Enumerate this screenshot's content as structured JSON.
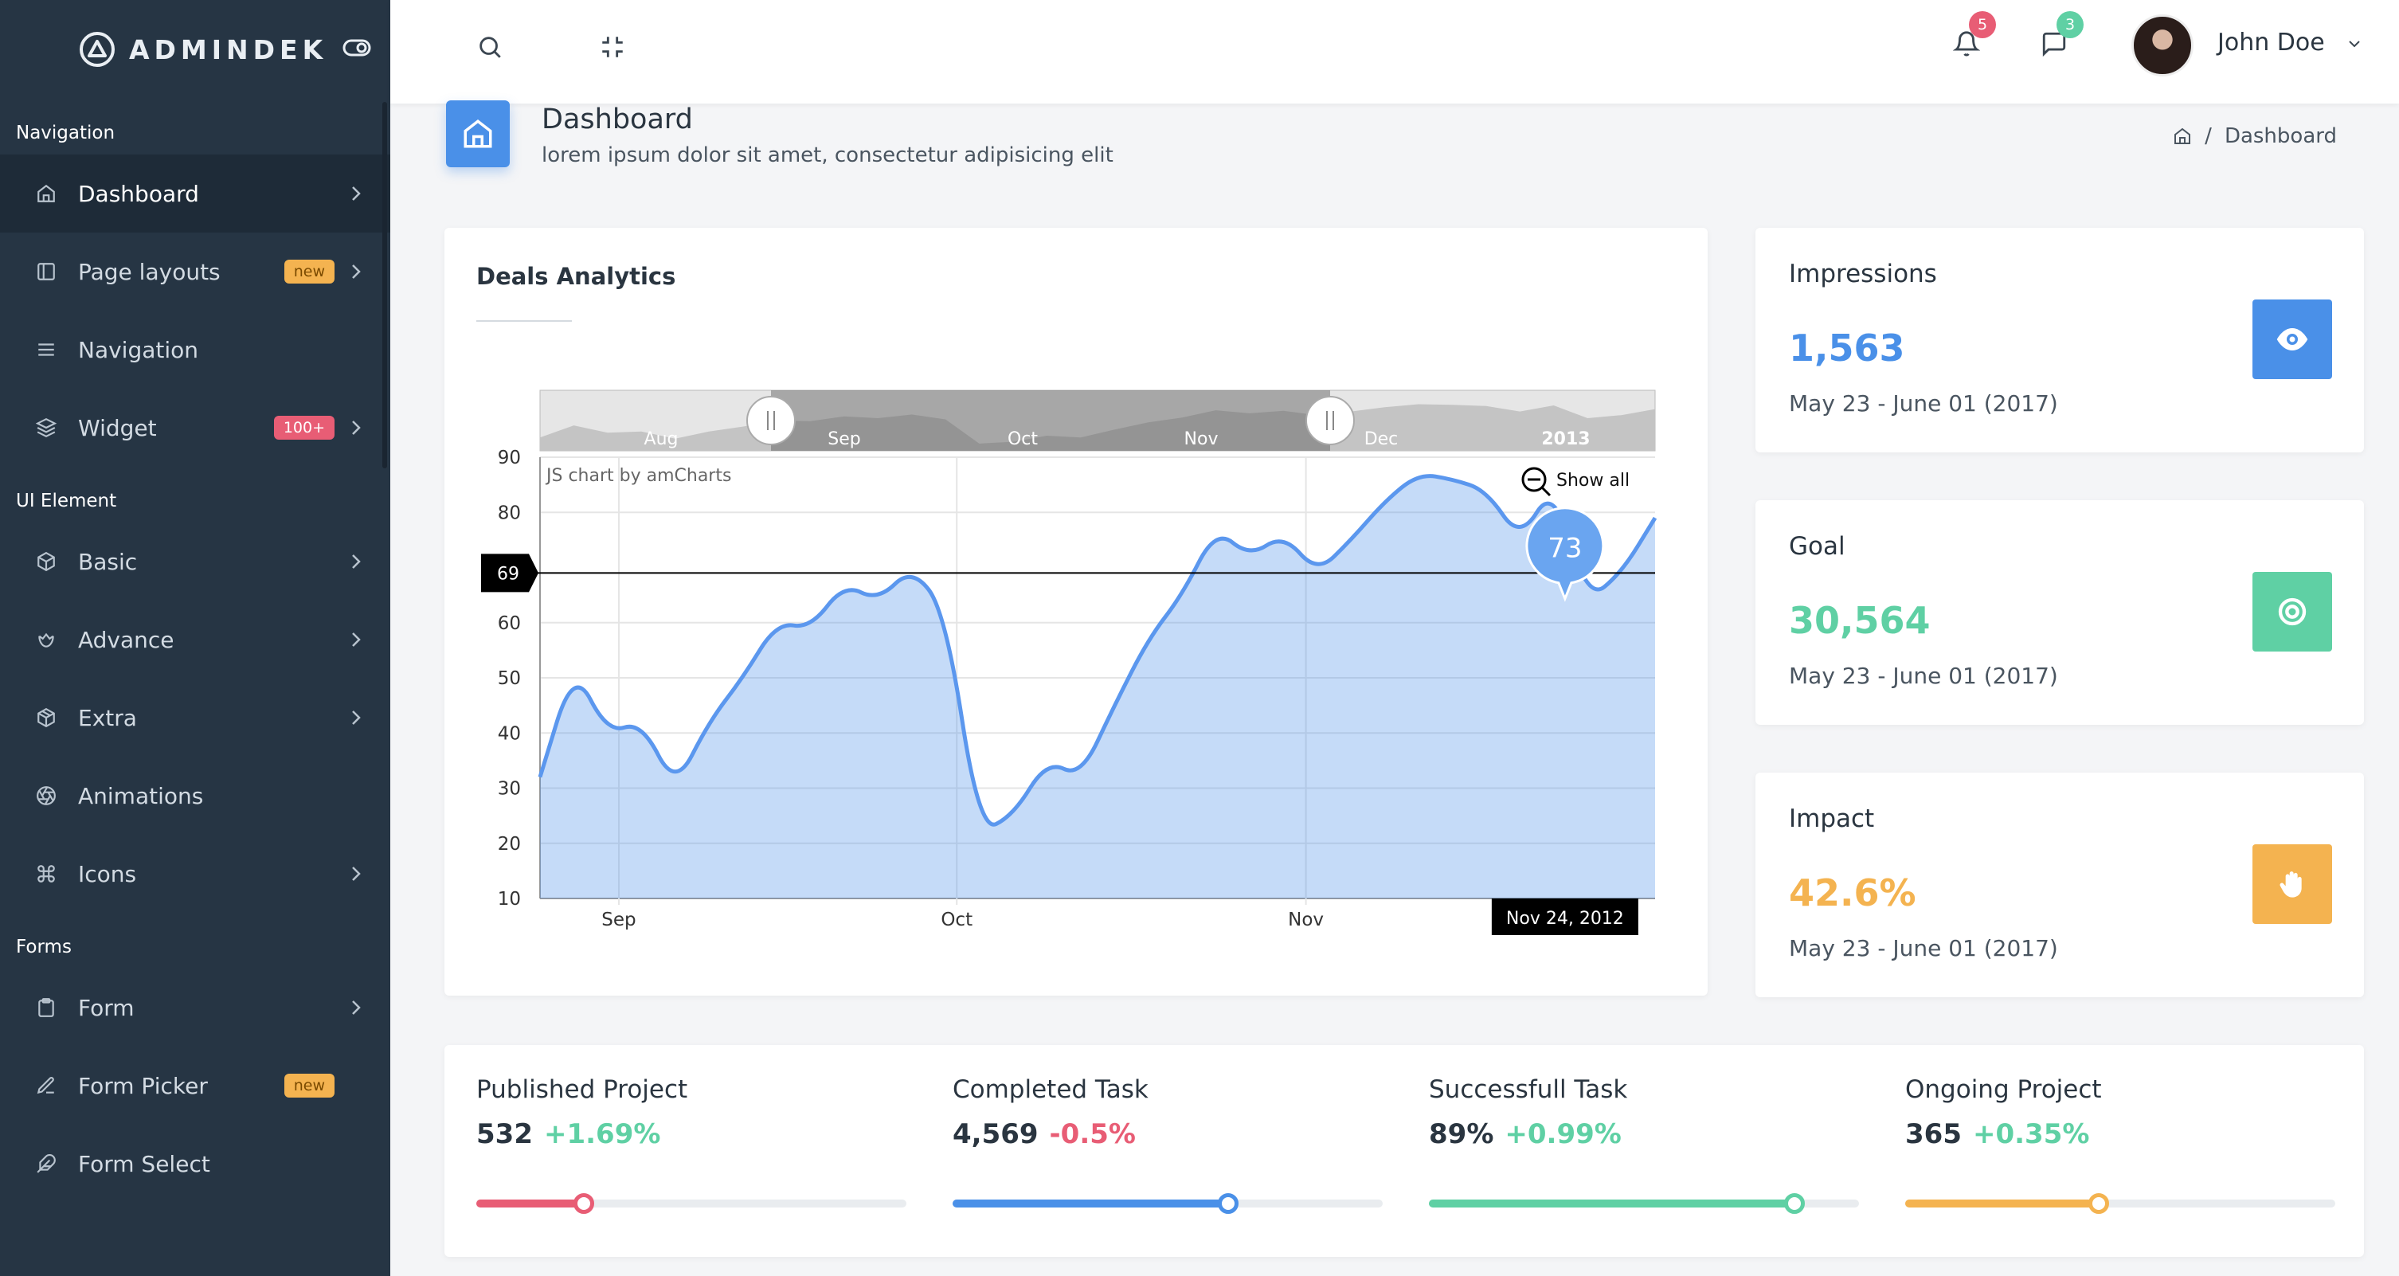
{
  "brand": {
    "name": "ADMINDEK"
  },
  "sidebar": {
    "sections": [
      {
        "heading": "Navigation",
        "items": [
          {
            "label": "Dashboard",
            "icon": "home-icon",
            "active": true,
            "chevron": true
          },
          {
            "label": "Page layouts",
            "icon": "layout-icon",
            "badge": "new",
            "chevron": true
          },
          {
            "label": "Navigation",
            "icon": "menu-icon"
          },
          {
            "label": "Widget",
            "icon": "layers-icon",
            "badge": "100+",
            "chevron": true
          }
        ]
      },
      {
        "heading": "UI Element",
        "items": [
          {
            "label": "Basic",
            "icon": "box-icon",
            "chevron": true
          },
          {
            "label": "Advance",
            "icon": "gift-icon",
            "chevron": true
          },
          {
            "label": "Extra",
            "icon": "package-icon",
            "chevron": true
          },
          {
            "label": "Animations",
            "icon": "aperture-icon"
          },
          {
            "label": "Icons",
            "icon": "command-icon",
            "chevron": true
          }
        ]
      },
      {
        "heading": "Forms",
        "items": [
          {
            "label": "Form",
            "icon": "clipboard-icon",
            "chevron": true
          },
          {
            "label": "Form Picker",
            "icon": "edit-icon",
            "badge": "new"
          },
          {
            "label": "Form Select",
            "icon": "feather-icon"
          }
        ]
      }
    ]
  },
  "topbar": {
    "notifications_count": "5",
    "messages_count": "3",
    "user_name": "John Doe"
  },
  "page": {
    "title": "Dashboard",
    "subtitle": "lorem ipsum dolor sit amet, consectetur adipisicing elit",
    "breadcrumb": "Dashboard"
  },
  "deals": {
    "title": "Deals Analytics",
    "credit": "JS chart by amCharts",
    "show_all": "Show all",
    "cursor_value": "69",
    "balloon_value": "73",
    "cursor_date": "Nov 24, 2012"
  },
  "chart_data": {
    "type": "area",
    "title": "Deals Analytics",
    "ylim": [
      10,
      90
    ],
    "y_ticks": [
      "10",
      "20",
      "30",
      "40",
      "50",
      "60",
      "80",
      "90"
    ],
    "x_ticks": [
      "Sep",
      "Oct",
      "Nov"
    ],
    "scrollbar_labels": [
      "Aug",
      "Sep",
      "Oct",
      "Nov",
      "Dec",
      "2013"
    ],
    "x": [
      "2012-08-25",
      "2012-08-28",
      "2012-08-31",
      "2012-09-03",
      "2012-09-06",
      "2012-09-09",
      "2012-09-12",
      "2012-09-15",
      "2012-09-18",
      "2012-09-21",
      "2012-09-24",
      "2012-09-27",
      "2012-09-30",
      "2012-10-03",
      "2012-10-06",
      "2012-10-09",
      "2012-10-12",
      "2012-10-15",
      "2012-10-18",
      "2012-10-21",
      "2012-10-24",
      "2012-10-27",
      "2012-10-30",
      "2012-11-02",
      "2012-11-05",
      "2012-11-08",
      "2012-11-11",
      "2012-11-14",
      "2012-11-17",
      "2012-11-20",
      "2012-11-23",
      "2012-11-26",
      "2012-11-29",
      "2012-12-02"
    ],
    "values": [
      32,
      52,
      40,
      42,
      30,
      42,
      50,
      60,
      59,
      67,
      64,
      70,
      62,
      22,
      25,
      35,
      32,
      45,
      57,
      65,
      77,
      72,
      76,
      69,
      75,
      82,
      87,
      86,
      84,
      75,
      85,
      64,
      69,
      79
    ],
    "cursor": {
      "x": "2012-11-24",
      "y": 69,
      "balloon": 73
    }
  },
  "stats": [
    {
      "title": "Impressions",
      "value": "1,563",
      "period": "May 23 - June 01 (2017)",
      "color": "#4a90e8",
      "icon": "eye-icon"
    },
    {
      "title": "Goal",
      "value": "30,564",
      "period": "May 23 - June 01 (2017)",
      "color": "#5fd0a4",
      "icon": "target-icon"
    },
    {
      "title": "Impact",
      "value": "42.6%",
      "period": "May 23 - June 01 (2017)",
      "color": "#f4b350",
      "icon": "hand-icon"
    }
  ],
  "projects": [
    {
      "title": "Published Project",
      "value": "532",
      "change": "+1.69%",
      "change_color": "#5fd0a4",
      "bar_color": "#e85d75",
      "progress": 0.25
    },
    {
      "title": "Completed Task",
      "value": "4,569",
      "change": "-0.5%",
      "change_color": "#e85d75",
      "bar_color": "#4a90e8",
      "progress": 0.64
    },
    {
      "title": "Successfull Task",
      "value": "89%",
      "change": "+0.99%",
      "change_color": "#5fd0a4",
      "bar_color": "#5fd0a4",
      "progress": 0.85
    },
    {
      "title": "Ongoing Project",
      "value": "365",
      "change": "+0.35%",
      "change_color": "#5fd0a4",
      "bar_color": "#f4b350",
      "progress": 0.45
    }
  ]
}
